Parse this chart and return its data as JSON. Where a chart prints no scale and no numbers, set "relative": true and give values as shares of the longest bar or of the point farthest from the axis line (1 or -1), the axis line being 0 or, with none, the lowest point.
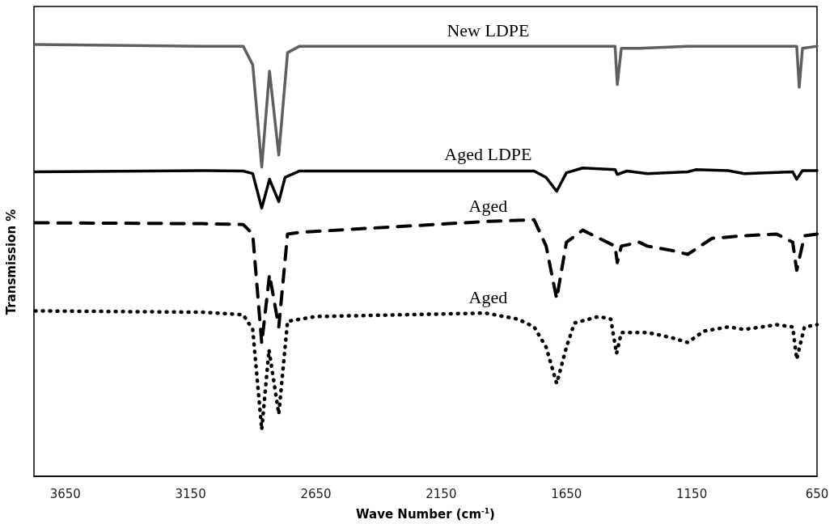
{
  "chart_data": {
    "type": "line",
    "relative": true,
    "xlabel": "Wave Number (cm$^{-1}$)",
    "ylabel": "Transmission %",
    "xlim": [
      3775,
      650
    ],
    "xticks": [
      3650,
      3150,
      2650,
      2150,
      1650,
      1150,
      650
    ],
    "grid": false,
    "legend": false,
    "marker": "none",
    "series": [
      {
        "name": "New LDPE",
        "color": "#5f5f5f",
        "line_style": "solid",
        "x": [
          3770,
          3102,
          2940,
          2902,
          2866,
          2835,
          2798,
          2763,
          2715,
          1973,
          1456,
          1447,
          1431,
          1360,
          1166,
          747,
          731,
          721,
          708,
          650
        ],
        "values": [
          1.0,
          0.996,
          0.996,
          0.953,
          0.716,
          0.938,
          0.744,
          0.981,
          0.996,
          0.996,
          0.996,
          0.907,
          0.991,
          0.991,
          0.996,
          0.996,
          0.996,
          0.901,
          0.991,
          0.996
        ]
      },
      {
        "name": "Aged LDPE",
        "color": "#000000",
        "line_style": "solid",
        "x": [
          3770,
          3102,
          2940,
          2902,
          2866,
          2835,
          2798,
          2773,
          2715,
          1973,
          1779,
          1731,
          1689,
          1650,
          1585,
          1456,
          1447,
          1408,
          1327,
          1166,
          1134,
          1005,
          940,
          747,
          731,
          708,
          650
        ],
        "values": [
          0.705,
          0.708,
          0.707,
          0.701,
          0.621,
          0.688,
          0.636,
          0.692,
          0.707,
          0.707,
          0.707,
          0.692,
          0.66,
          0.703,
          0.714,
          0.71,
          0.699,
          0.707,
          0.701,
          0.705,
          0.71,
          0.708,
          0.701,
          0.705,
          0.688,
          0.708,
          0.708
        ]
      },
      {
        "name": "Aged",
        "color": "#000000",
        "line_style": "dashed",
        "x": [
          3770,
          3102,
          2940,
          2902,
          2866,
          2835,
          2798,
          2763,
          2715,
          1973,
          1779,
          1731,
          1689,
          1650,
          1585,
          1456,
          1447,
          1431,
          1360,
          1327,
          1230,
          1166,
          1069,
          940,
          811,
          747,
          731,
          700,
          650
        ],
        "values": [
          0.587,
          0.585,
          0.583,
          0.561,
          0.308,
          0.467,
          0.346,
          0.561,
          0.565,
          0.59,
          0.594,
          0.533,
          0.411,
          0.542,
          0.57,
          0.533,
          0.495,
          0.533,
          0.542,
          0.533,
          0.523,
          0.514,
          0.551,
          0.557,
          0.561,
          0.542,
          0.477,
          0.557,
          0.561
        ]
      },
      {
        "name": "Aged",
        "color": "#000000",
        "line_style": "dotted",
        "x": [
          3770,
          3102,
          2940,
          2902,
          2866,
          2837,
          2798,
          2763,
          2650,
          1973,
          1844,
          1779,
          1731,
          1689,
          1650,
          1618,
          1521,
          1473,
          1450,
          1431,
          1327,
          1230,
          1166,
          1102,
          1005,
          940,
          811,
          747,
          731,
          700,
          650
        ],
        "values": [
          0.383,
          0.38,
          0.374,
          0.34,
          0.108,
          0.293,
          0.144,
          0.359,
          0.37,
          0.378,
          0.364,
          0.346,
          0.299,
          0.215,
          0.299,
          0.355,
          0.37,
          0.364,
          0.284,
          0.333,
          0.333,
          0.321,
          0.31,
          0.336,
          0.346,
          0.34,
          0.351,
          0.346,
          0.271,
          0.346,
          0.351
        ]
      }
    ]
  }
}
